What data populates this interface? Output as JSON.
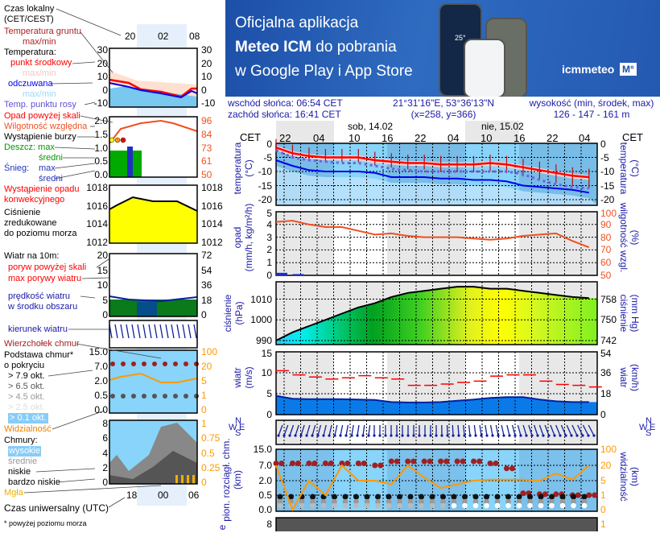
{
  "banner": {
    "line1": "Oficjalna aplikacja",
    "line2_bold": "Meteo ICM",
    "line2_rest": " do pobrania",
    "line3": "w Google Play i App Store",
    "logo_text": "icmmeteo",
    "logo_badge": "M°",
    "phone_temp": "25°"
  },
  "info": {
    "sunrise": "wschód słońca: 06:54 CET",
    "sunset": "zachód słońca: 16:41 CET",
    "coords": "21°31'16\"E, 53°36'13\"N",
    "grid": "(x=258,  y=366)",
    "elev_label": "wysokość (min, środek, max)",
    "elev_value": "126 - 147 - 161 m"
  },
  "header": {
    "tz_left": "CET",
    "tz_right": "CET",
    "days": [
      "sob, 14.02",
      "nie, 15.02"
    ],
    "hours": [
      "22",
      "04",
      "10",
      "16",
      "22",
      "04",
      "10",
      "16",
      "22",
      "04"
    ]
  },
  "legend": {
    "local_time": "Czas lokalny",
    "local_time2": "(CET/CEST)",
    "top_hours": [
      "20",
      "02",
      "08"
    ],
    "ground_temp": "Temperatura gruntu",
    "ground_temp2": "max/min",
    "temperature": "Temperatura:",
    "mid_point": "punkt środkowy",
    "maxmin1": "max/min",
    "feels": "odczuwana",
    "maxmin2": "max/min",
    "dew": "Temp. punktu rosy",
    "precip_over": "Opad powyżej skali",
    "rh": "Wilgotność względna",
    "storm": "Wystąpienie burzy",
    "rain_max": "Deszcz: max",
    "rain_avg": "średni",
    "snow": "Śnieg:",
    "snow_max": "max",
    "snow_avg": "średni",
    "convective": "Wystąpienie opadu",
    "convective2": "konwekcyjnego",
    "pressure1": "Ciśnienie",
    "pressure2": "zredukowane",
    "pressure3": "do poziomu morza",
    "wind10": "Wiatr na 10m:",
    "gust_over": "poryw powyżej skali",
    "gust_max": "max porywy wiatru",
    "wind_speed1": "prędkość wiatru",
    "wind_speed2": "w środku obszaru",
    "wind_dir": "kierunek wiatru",
    "cloud_top": "Wierzchołek chmur",
    "cloud_base1": "Podstawa chmur*",
    "cloud_base2": "o pokryciu",
    "okt": [
      "> 7.9 okt.",
      "> 6.5 okt.",
      "> 4.5 okt.",
      "> 2.5 okt.",
      "> 0.1 okt."
    ],
    "visibility": "Widzialność",
    "clouds": "Chmury:",
    "high": "wysokie",
    "mid": "średnie",
    "low": "niskie",
    "very_low": "bardzo niskie",
    "fog": "Mgła",
    "utc": "Czas uniwersalny (UTC)",
    "bottom_hours": [
      "18",
      "00",
      "06"
    ],
    "footnote": "* powyżej poziomu morza",
    "ticks": {
      "temp": [
        "30",
        "20",
        "10",
        "0",
        "-10"
      ],
      "precip": [
        "2.0",
        "1.5",
        "1.0",
        "0.5",
        "0.0"
      ],
      "rh": [
        "96",
        "84",
        "73",
        "61",
        "50"
      ],
      "pressure": [
        "1018",
        "1016",
        "1014",
        "1012"
      ],
      "wind": [
        "20",
        "15",
        "10",
        "5",
        "0"
      ],
      "wind_kmh": [
        "72",
        "54",
        "36",
        "18",
        "0"
      ],
      "cloud_km": [
        "15.0",
        "7.0",
        "2.0",
        "0.5",
        "0.0"
      ],
      "vis": [
        "100",
        "20",
        "5",
        "1",
        "0"
      ],
      "cover": [
        "8",
        "6",
        "4",
        "2",
        "0"
      ],
      "cover_r": [
        "1",
        "0.75",
        "0.5",
        "0.25",
        "0"
      ]
    }
  },
  "panels": {
    "temp": {
      "label": "temperatura",
      "unit": "(°C)",
      "ticks": [
        "0",
        "-5",
        "-10",
        "-15",
        "-20"
      ]
    },
    "precip": {
      "label": "opad",
      "unit": "(mm/h, kg/m²/h)",
      "ticks": [
        "5",
        "4",
        "3",
        "2",
        "1",
        "0"
      ],
      "rlabel": "wilgotność wzgl.",
      "runit": "(%)",
      "rticks": [
        "100",
        "90",
        "80",
        "70",
        "60",
        "50"
      ]
    },
    "pressure": {
      "label": "ciśnienie",
      "unit": "(hPa)",
      "ticks": [
        "1010",
        "1000",
        "990"
      ],
      "rlabel": "ciśnienie",
      "runit": "(mm Hg)",
      "rticks": [
        "758",
        "750",
        "742"
      ]
    },
    "wind": {
      "label": "wiatr",
      "unit": "(m/s)",
      "ticks": [
        "15",
        "10",
        "5",
        "0"
      ],
      "rlabel": "wiatr",
      "runit": "(km/h)",
      "rticks": [
        "54",
        "36",
        "18",
        "0"
      ]
    },
    "winddir": {
      "compass": [
        "N",
        "W",
        "E",
        "S"
      ]
    },
    "cloud": {
      "label": "pion. rozciągł. chm.",
      "unit": "(km)",
      "prefix": "e",
      "ticks": [
        "15.0",
        "7.0",
        "2.0",
        "0.5",
        "0.0"
      ],
      "rlabel": "widzialność",
      "runit": "(km)",
      "rticks": [
        "100",
        "20",
        "5",
        "1",
        "0"
      ]
    },
    "cover": {
      "ticks": [
        "8"
      ],
      "rticks": [
        "1"
      ]
    }
  },
  "colors": {
    "temp": "#ff0000",
    "feels": "#0000ee",
    "dew": "#7060e0",
    "rh": "#f05020",
    "gust": "#ff0000",
    "wind": "#0020a0",
    "pressure_line": "#000000",
    "visibility": "#ff9900",
    "cloud_top": "#a02020",
    "bg_sky": "#88d4fa"
  },
  "chart_data": {
    "type": "line",
    "x_hours_from_start": [
      0,
      3,
      6,
      9,
      12,
      15,
      18,
      21,
      24,
      27,
      30,
      33,
      36,
      39,
      42,
      45,
      48,
      51,
      54,
      57
    ],
    "start_time": "20 CET",
    "series": {
      "temperature_mid": [
        -1.5,
        -3.5,
        -4.5,
        -5,
        -5,
        -5,
        -6,
        -6.5,
        -7,
        -7,
        -7.5,
        -7.5,
        -7.5,
        -7,
        -7.5,
        -8.5,
        -9.5,
        -10.5,
        -11.5,
        -12
      ],
      "temperature_feels": [
        -6,
        -8,
        -9.5,
        -10,
        -10,
        -10,
        -10.5,
        -12,
        -12,
        -12,
        -12.5,
        -12.5,
        -13,
        -13,
        -13.5,
        -15,
        -15.5,
        -16,
        -16.5,
        -17.5
      ],
      "dew_point": [
        -2.5,
        -5,
        -6,
        -6.5,
        -7,
        -7,
        -8,
        -9,
        -9.5,
        -10,
        -10,
        -10,
        -10,
        -10,
        -10,
        -11,
        -13,
        -14.5,
        -15.5,
        -16
      ],
      "relative_humidity": [
        92,
        93,
        90,
        88,
        88,
        85,
        82,
        83,
        81,
        80,
        80,
        80,
        79,
        78,
        79,
        81,
        82,
        83,
        77,
        72
      ],
      "precipitation": [
        0.2,
        0.1,
        0,
        0,
        0,
        0,
        0,
        0,
        0,
        0,
        0,
        0,
        0,
        0,
        0,
        0,
        0,
        0,
        0,
        0
      ],
      "pressure_hpa": [
        990,
        994,
        997,
        1000,
        1003,
        1006,
        1008,
        1011,
        1013,
        1014,
        1015,
        1016,
        1016,
        1015,
        1015,
        1014,
        1013,
        1012,
        1011,
        1010.5
      ],
      "wind_ms": [
        4.5,
        3.8,
        3.7,
        3.7,
        3.7,
        3.6,
        3.5,
        3.0,
        2.9,
        2.9,
        3.0,
        3.3,
        3.6,
        4.0,
        4.2,
        4.2,
        3.6,
        3.2,
        3.0,
        3.0
      ],
      "gust_ms": [
        10.5,
        9.5,
        9,
        8.5,
        8.8,
        9.3,
        8.8,
        8.5,
        7,
        7,
        7.3,
        7.7,
        8,
        9.2,
        9.5,
        9.5,
        8,
        7.2,
        7,
        6.6
      ],
      "visibility_km": [
        20,
        0.1,
        5,
        1,
        20,
        5,
        5,
        4,
        20,
        8,
        3,
        4,
        5,
        6,
        6,
        6,
        5,
        12,
        6,
        20
      ],
      "cloud_top_km": [
        8,
        8,
        8,
        8,
        8,
        8,
        7,
        9,
        9,
        9,
        9,
        9,
        9,
        8,
        6,
        0.7,
        0.6,
        0.6,
        0.5,
        0.5
      ]
    },
    "ylim": {
      "temp": [
        -22,
        0
      ],
      "precip": [
        0,
        5
      ],
      "rh": [
        50,
        100
      ],
      "pressure": [
        988,
        1018
      ],
      "wind": [
        0,
        15
      ]
    }
  }
}
